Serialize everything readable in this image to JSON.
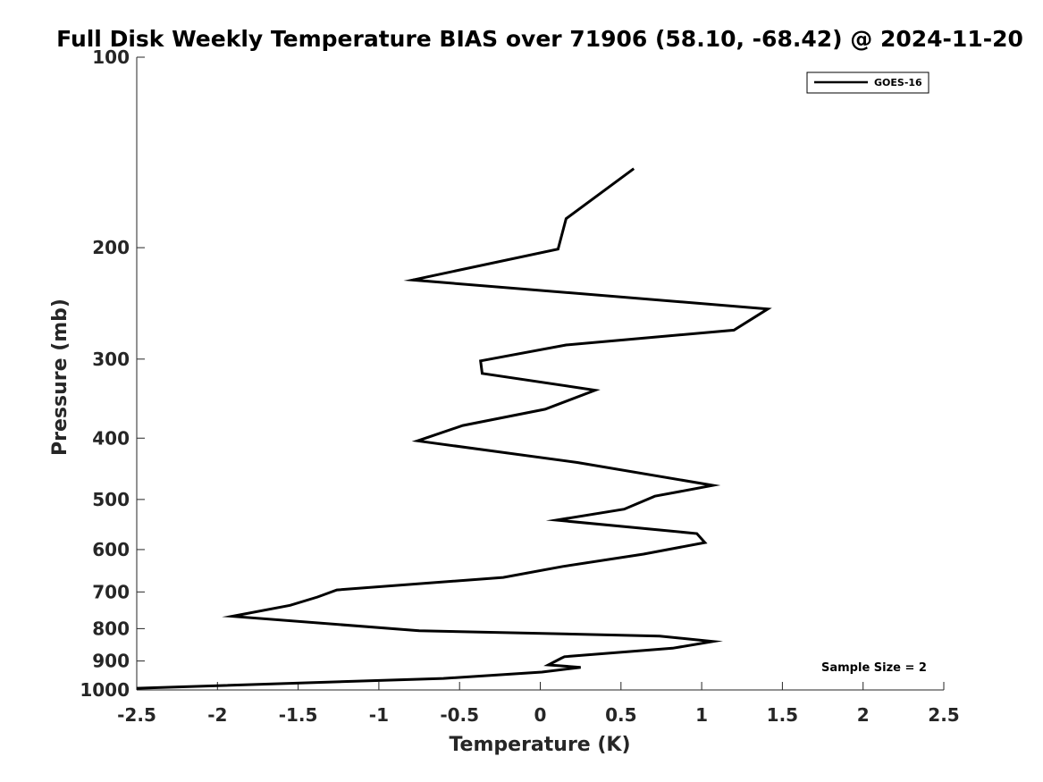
{
  "chart_data": {
    "type": "line",
    "title": "Full Disk Weekly Temperature BIAS over 71906 (58.10, -68.42) @ 2024-11-20",
    "xlabel": "Temperature (K)",
    "ylabel": "Pressure (mb)",
    "xlim": [
      -2.5,
      2.5
    ],
    "ylim": [
      100,
      1000
    ],
    "yscale": "log",
    "yreversed": true,
    "xticks": [
      -2.5,
      -2,
      -1.5,
      -1,
      -0.5,
      0,
      0.5,
      1,
      1.5,
      2,
      2.5
    ],
    "xtick_labels": [
      "-2.5",
      "-2",
      "-1.5",
      "-1",
      "-0.5",
      "0",
      "0.5",
      "1",
      "1.5",
      "2",
      "2.5"
    ],
    "yticks": [
      100,
      200,
      300,
      400,
      500,
      600,
      700,
      800,
      900,
      1000
    ],
    "ytick_labels": [
      "100",
      "200",
      "300",
      "400",
      "500",
      "600",
      "700",
      "800",
      "900",
      "1000"
    ],
    "grid": false,
    "legend_position": "top-right",
    "series": [
      {
        "name": "GOES-16",
        "color": "#000000",
        "x": [
          0.58,
          0.16,
          0.11,
          -0.79,
          1.41,
          1.2,
          0.16,
          -0.37,
          -0.36,
          0.34,
          0.03,
          -0.48,
          -0.76,
          0.23,
          1.07,
          0.71,
          0.52,
          0.1,
          0.97,
          1.02,
          0.64,
          0.14,
          -0.23,
          -1.26,
          -1.38,
          -1.55,
          -1.91,
          -0.75,
          0.74,
          1.07,
          0.82,
          0.15,
          0.13,
          0.05,
          0.25,
          0.01,
          -0.6,
          -2.5
        ],
        "y": [
          150,
          180,
          201,
          225,
          250,
          270,
          285,
          302,
          316,
          336,
          360,
          382,
          404,
          437,
          475,
          494,
          518,
          539,
          566,
          585,
          610,
          638,
          664,
          695,
          713,
          735,
          765,
          806,
          822,
          838,
          859,
          886,
          891,
          913,
          921,
          937,
          959,
          994
        ]
      }
    ],
    "annotations": [
      "Sample Size = 2"
    ]
  }
}
